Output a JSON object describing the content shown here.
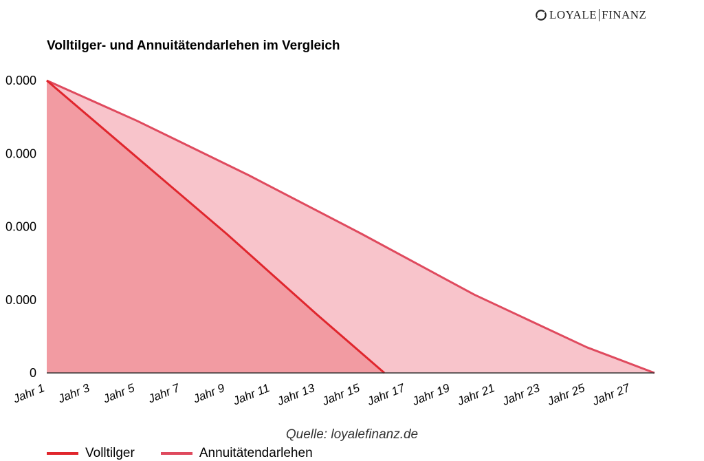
{
  "brand": {
    "logo_left": "LOYALE",
    "logo_right": "FINANZ"
  },
  "source_note": "Quelle: loyalefinanz.de",
  "chart_data": {
    "type": "area",
    "title": "Volltilger- und Annuitätendarlehen im Vergleich",
    "xlabel": "",
    "ylabel": "",
    "y_tick_labels": [
      "0",
      "0.000",
      "0.000",
      "0.000",
      "0.000"
    ],
    "x_tick_labels": [
      "Jahr 1",
      "Jahr 3",
      "Jahr 5",
      "Jahr 7",
      "Jahr 9",
      "Jahr 11",
      "Jahr 13",
      "Jahr 15",
      "Jahr 17",
      "Jahr 19",
      "Jahr 21",
      "Jahr 23",
      "Jahr 25",
      "Jahr 27"
    ],
    "ylim": [
      0,
      4
    ],
    "xlim": [
      1,
      28
    ],
    "grid": false,
    "legend_position": "bottom-left",
    "series": [
      {
        "name": "Volltilger",
        "line_color": "#e0262d",
        "fill_color": "#f29ba2",
        "x": [
          1,
          5,
          9,
          13,
          16
        ],
        "y": [
          4,
          2.95,
          1.9,
          0.8,
          0
        ]
      },
      {
        "name": "Annuitätendarlehen",
        "line_color": "#df4a5e",
        "fill_color": "#f8c4cb",
        "x": [
          1,
          5,
          10,
          15,
          20,
          25,
          28
        ],
        "y": [
          4,
          3.45,
          2.7,
          1.9,
          1.07,
          0.35,
          0
        ]
      }
    ]
  }
}
